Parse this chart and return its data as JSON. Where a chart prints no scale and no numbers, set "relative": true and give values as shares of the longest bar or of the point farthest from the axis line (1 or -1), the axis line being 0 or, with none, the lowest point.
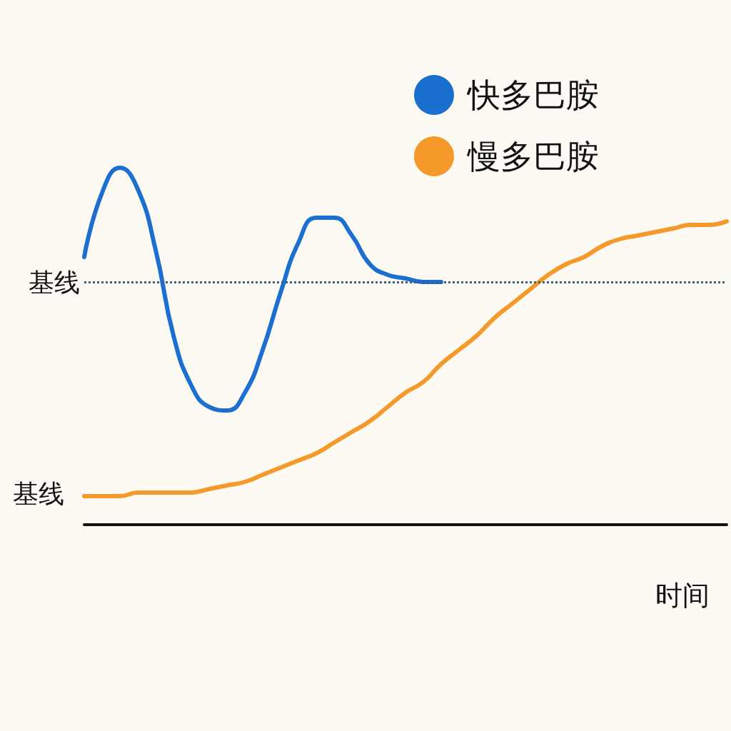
{
  "chart_data": {
    "type": "line",
    "relative": true,
    "xlabel": "时间",
    "categories": [
      null,
      null,
      null,
      null,
      null,
      null,
      null,
      null,
      null,
      null,
      null,
      null,
      null,
      null,
      null,
      null,
      null,
      null,
      null,
      null,
      null,
      null,
      null,
      null,
      null,
      null,
      null,
      null,
      null,
      null,
      null,
      null,
      null,
      null,
      null,
      null,
      null
    ],
    "series": [
      {
        "name": "快多巴胺",
        "color": "#1a6fd1",
        "values": [
          0.75,
          0.93,
          1.0,
          0.94,
          0.77,
          0.53,
          0.39,
          0.33,
          0.32,
          0.37,
          0.49,
          0.65,
          0.79,
          0.86,
          0.86,
          0.81,
          0.73,
          0.7,
          0.69,
          0.68,
          0.68,
          null,
          null,
          null,
          null,
          null,
          null,
          null,
          null,
          null,
          null,
          null,
          null,
          null,
          null,
          null,
          null
        ]
      },
      {
        "name": "慢多巴胺",
        "color": "#f59a2a",
        "values": [
          0.08,
          0.08,
          0.08,
          0.09,
          0.09,
          0.09,
          0.09,
          0.1,
          0.11,
          0.12,
          0.14,
          0.16,
          0.18,
          0.2,
          0.23,
          0.26,
          0.29,
          0.33,
          0.37,
          0.4,
          0.45,
          0.49,
          0.53,
          0.58,
          0.62,
          0.66,
          0.7,
          0.73,
          0.75,
          0.78,
          0.8,
          0.81,
          0.82,
          0.83,
          0.84,
          0.84,
          0.85
        ]
      }
    ],
    "ref_lines": [
      {
        "axis": "y",
        "value": 0.68,
        "label": "基线",
        "color": "#3a5f80",
        "line_style": "dotted"
      }
    ],
    "annotations": [
      "基线"
    ],
    "legend": "top right",
    "grid": false,
    "line_style": "solid"
  }
}
